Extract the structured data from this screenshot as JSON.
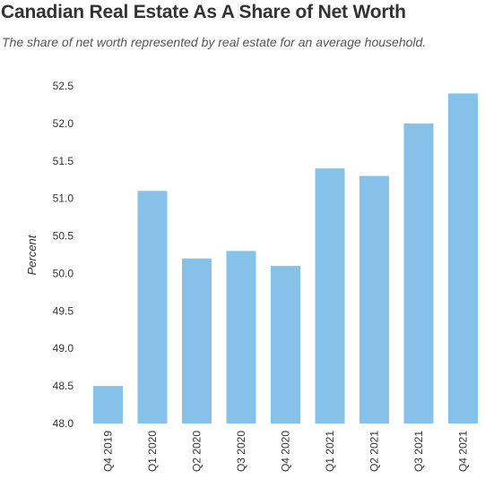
{
  "chart_data": {
    "type": "bar",
    "title": "Canadian Real Estate As A Share of Net Worth",
    "subtitle": "The share of net worth represented by real estate for an average household.",
    "xlabel": "",
    "ylabel": "Percent",
    "categories": [
      "Q4 2019",
      "Q1 2020",
      "Q2 2020",
      "Q3 2020",
      "Q4 2020",
      "Q1 2021",
      "Q2 2021",
      "Q3 2021",
      "Q4 2021"
    ],
    "values": [
      48.5,
      51.1,
      50.2,
      50.3,
      50.1,
      51.4,
      51.3,
      52.0,
      52.4
    ],
    "ylim": [
      48.0,
      52.5
    ],
    "yticks": [
      48.0,
      48.5,
      49.0,
      49.5,
      50.0,
      50.5,
      51.0,
      51.5,
      52.0,
      52.5
    ],
    "ytick_labels": [
      "48.0",
      "48.5",
      "49.0",
      "49.5",
      "50.0",
      "50.5",
      "51.0",
      "51.5",
      "52.0",
      "52.5"
    ],
    "grid": false,
    "legend": "none",
    "bar_color": "#85c1e9"
  }
}
